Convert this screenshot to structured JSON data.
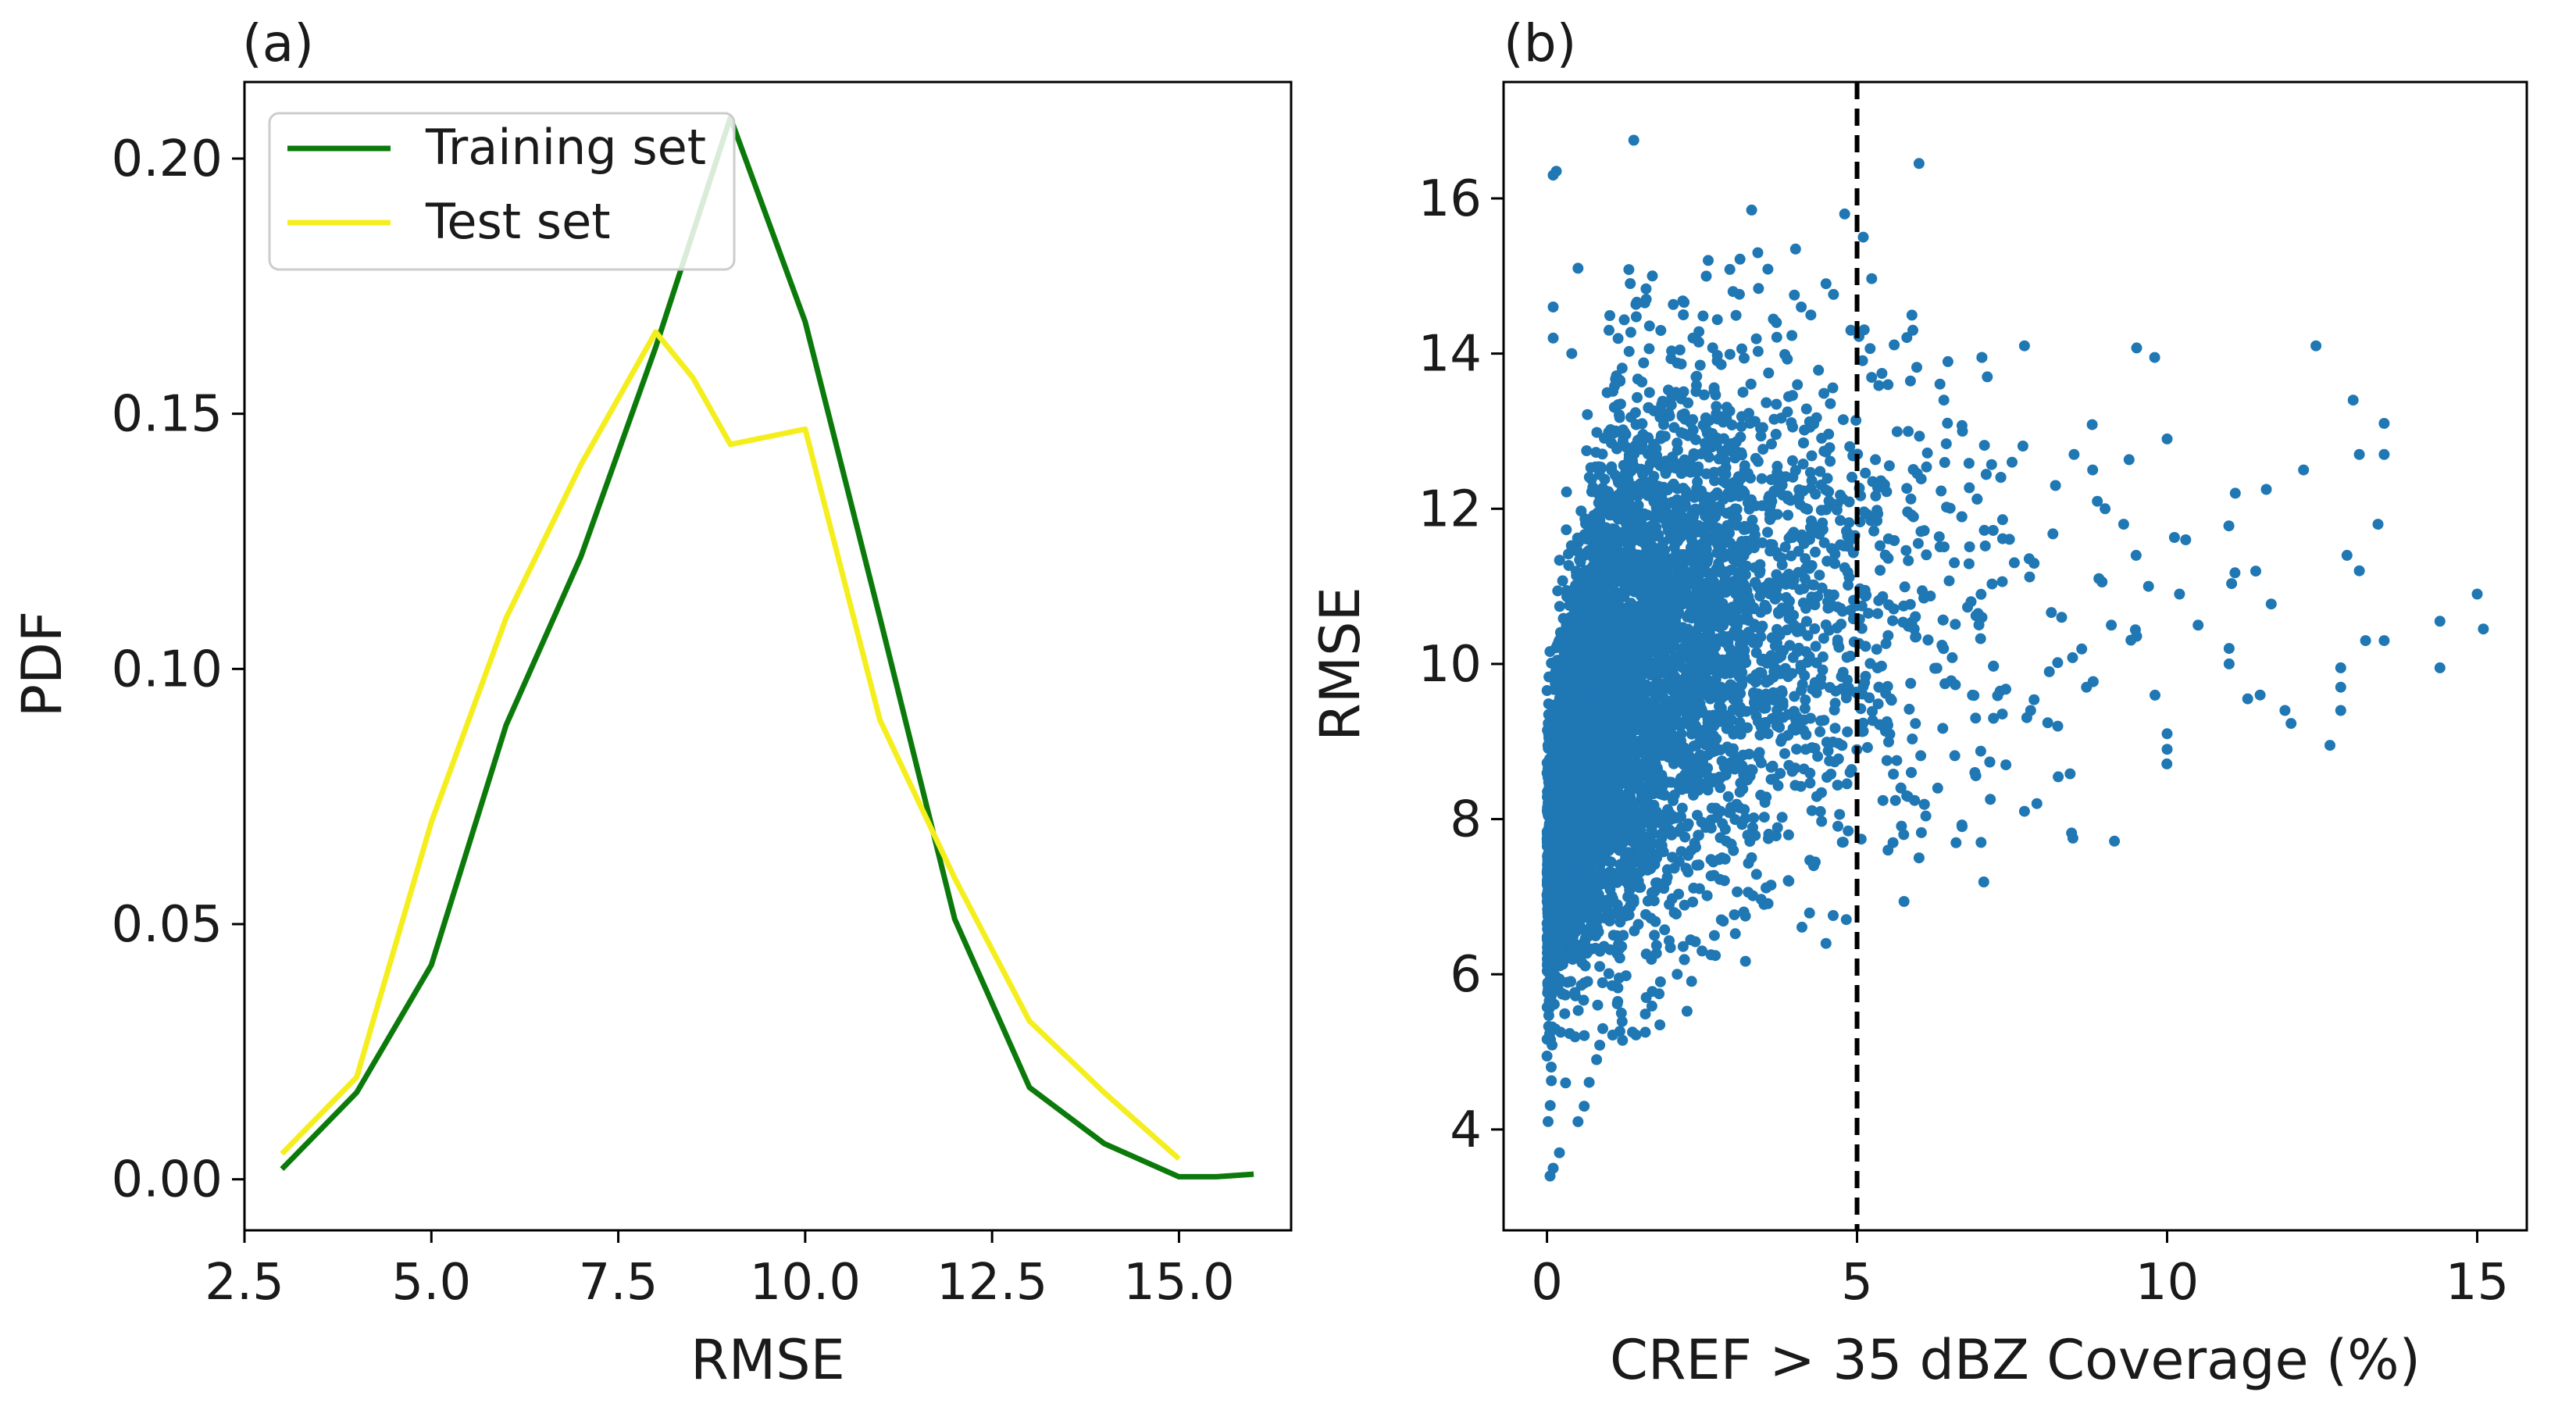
{
  "figure": {
    "panels": [
      "(a)",
      "(b)"
    ]
  },
  "chart_data": [
    {
      "type": "line",
      "panel_label": "(a)",
      "title": "",
      "xlabel": "RMSE",
      "ylabel": "PDF",
      "xlim": [
        2.5,
        16.5
      ],
      "ylim": [
        -0.01,
        0.215
      ],
      "x_ticks": [
        2.5,
        5.0,
        7.5,
        10.0,
        12.5,
        15.0
      ],
      "x_tick_labels": [
        "2.5",
        "5.0",
        "7.5",
        "10.0",
        "12.5",
        "15.0"
      ],
      "y_ticks": [
        0.0,
        0.05,
        0.1,
        0.15,
        0.2
      ],
      "y_tick_labels": [
        "0.00",
        "0.05",
        "0.10",
        "0.15",
        "0.20"
      ],
      "grid": false,
      "legend_position": "top-left",
      "series": [
        {
          "name": "Training set",
          "color": "#0b7a0b",
          "x": [
            3,
            4,
            5,
            6,
            7,
            8,
            9,
            10,
            11,
            12,
            13,
            14,
            15,
            15.5,
            16
          ],
          "values": [
            0.002,
            0.017,
            0.042,
            0.089,
            0.122,
            0.163,
            0.208,
            0.168,
            0.11,
            0.051,
            0.018,
            0.007,
            0.0005,
            0.0005,
            0.001
          ]
        },
        {
          "name": "Test set",
          "color": "#f5ee1f",
          "x": [
            3,
            4,
            5,
            6,
            7,
            8,
            8.5,
            9,
            10,
            11,
            12,
            13,
            14,
            15
          ],
          "values": [
            0.005,
            0.02,
            0.07,
            0.11,
            0.14,
            0.166,
            0.157,
            0.144,
            0.147,
            0.09,
            0.059,
            0.031,
            0.017,
            0.004
          ]
        }
      ]
    },
    {
      "type": "scatter",
      "panel_label": "(b)",
      "title": "",
      "xlabel": "CREF > 35 dBZ Coverage (%)",
      "ylabel": "RMSE",
      "xlim": [
        -0.7,
        15.8
      ],
      "ylim": [
        2.7,
        17.5
      ],
      "x_ticks": [
        0,
        5,
        10,
        15
      ],
      "x_tick_labels": [
        "0",
        "5",
        "10",
        "15"
      ],
      "y_ticks": [
        4,
        6,
        8,
        10,
        12,
        14,
        16
      ],
      "y_tick_labels": [
        "4",
        "6",
        "8",
        "10",
        "12",
        "14",
        "16"
      ],
      "grid": false,
      "point_color": "#1f77b4",
      "reference_line": {
        "orientation": "vertical",
        "x": 5,
        "style": "dashed",
        "color": "#000000"
      },
      "cloud_point_count": 6500,
      "points": [
        [
          0.1,
          16.3
        ],
        [
          0.15,
          16.35
        ],
        [
          1.4,
          16.75
        ],
        [
          6.0,
          16.45
        ],
        [
          3.3,
          15.85
        ],
        [
          4.8,
          15.8
        ],
        [
          0.5,
          15.1
        ],
        [
          5.1,
          15.5
        ],
        [
          3.4,
          15.3
        ],
        [
          2.6,
          15.2
        ],
        [
          1.7,
          15.0
        ],
        [
          4.5,
          14.9
        ],
        [
          12.4,
          14.1
        ],
        [
          13.0,
          13.4
        ],
        [
          13.5,
          13.1
        ],
        [
          13.1,
          12.7
        ],
        [
          13.5,
          12.7
        ],
        [
          12.2,
          12.5
        ],
        [
          13.4,
          11.8
        ],
        [
          12.9,
          11.4
        ],
        [
          13.1,
          11.2
        ],
        [
          15.0,
          10.9
        ],
        [
          14.4,
          10.55
        ],
        [
          15.1,
          10.45
        ],
        [
          13.2,
          10.3
        ],
        [
          13.5,
          10.3
        ],
        [
          14.4,
          9.95
        ],
        [
          12.8,
          9.95
        ],
        [
          12.8,
          9.7
        ],
        [
          11.9,
          9.4
        ],
        [
          12.8,
          9.4
        ],
        [
          11.5,
          9.6
        ],
        [
          11.3,
          9.55
        ],
        [
          11.0,
          10.2
        ],
        [
          11.0,
          10.0
        ],
        [
          10.5,
          10.5
        ],
        [
          10.2,
          10.9
        ],
        [
          9.8,
          13.95
        ],
        [
          10.0,
          12.9
        ],
        [
          11.1,
          12.2
        ],
        [
          11.6,
          12.25
        ],
        [
          10.3,
          11.6
        ],
        [
          10.0,
          9.1
        ],
        [
          10.0,
          8.9
        ],
        [
          7.7,
          14.1
        ],
        [
          7.1,
          13.7
        ],
        [
          8.5,
          12.7
        ],
        [
          8.8,
          12.5
        ],
        [
          9.3,
          11.8
        ],
        [
          9.7,
          11.0
        ],
        [
          9.1,
          10.5
        ],
        [
          8.1,
          9.9
        ],
        [
          8.7,
          9.7
        ],
        [
          7.9,
          8.2
        ],
        [
          7.7,
          8.1
        ],
        [
          7.0,
          7.7
        ],
        [
          6.0,
          7.5
        ],
        [
          5.5,
          7.6
        ],
        [
          3.5,
          6.9
        ],
        [
          3.2,
          6.75
        ],
        [
          2.7,
          6.5
        ],
        [
          1.6,
          5.7
        ],
        [
          1.2,
          5.5
        ],
        [
          0.8,
          4.9
        ],
        [
          0.6,
          4.3
        ],
        [
          0.5,
          4.1
        ],
        [
          0.2,
          3.7
        ],
        [
          0.05,
          3.4
        ],
        [
          0.1,
          3.5
        ],
        [
          0.3,
          4.6
        ],
        [
          0.9,
          5.3
        ],
        [
          2.1,
          6.0
        ],
        [
          2.5,
          6.3
        ],
        [
          3.9,
          7.2
        ],
        [
          4.3,
          7.4
        ],
        [
          5.8,
          8.3
        ],
        [
          6.3,
          8.4
        ],
        [
          6.9,
          8.6
        ],
        [
          7.4,
          8.7
        ],
        [
          7.2,
          9.3
        ],
        [
          7.8,
          9.4
        ],
        [
          8.3,
          10.6
        ],
        [
          8.9,
          11.1
        ],
        [
          9.5,
          11.4
        ],
        [
          9.0,
          12.0
        ],
        [
          8.2,
          12.3
        ],
        [
          7.5,
          12.6
        ],
        [
          6.7,
          13.0
        ],
        [
          6.4,
          13.4
        ],
        [
          5.5,
          13.6
        ],
        [
          5.9,
          14.3
        ],
        [
          4.9,
          14.3
        ],
        [
          4.1,
          14.6
        ],
        [
          3.7,
          14.4
        ],
        [
          3.0,
          14.8
        ],
        [
          2.2,
          14.5
        ],
        [
          1.6,
          14.7
        ],
        [
          1.0,
          14.3
        ],
        [
          0.4,
          14.0
        ],
        [
          0.1,
          14.6
        ],
        [
          0.1,
          14.2
        ]
      ]
    }
  ]
}
